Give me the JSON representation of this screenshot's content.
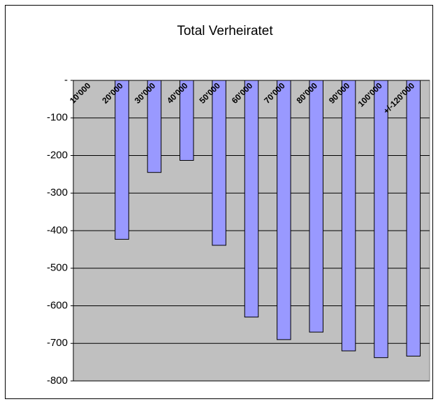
{
  "chart_data": {
    "type": "bar",
    "title": "Total Verheiratet",
    "categories": [
      "10'000",
      "20'000",
      "30'000",
      "40'000",
      "50'000",
      "60'000",
      "70'000",
      "80'000",
      "90'000",
      "100'000",
      "+/-120'000"
    ],
    "values": [
      0,
      -423,
      -245,
      -213,
      -439,
      -630,
      -690,
      -670,
      -720,
      -738,
      -734
    ],
    "color": "#9999ff",
    "ylim": [
      -800,
      0
    ],
    "yticks": [
      {
        "value": 0,
        "label": "-"
      },
      -100,
      -200,
      -300,
      -400,
      -500,
      -600,
      -700,
      -800
    ],
    "grid": true
  }
}
